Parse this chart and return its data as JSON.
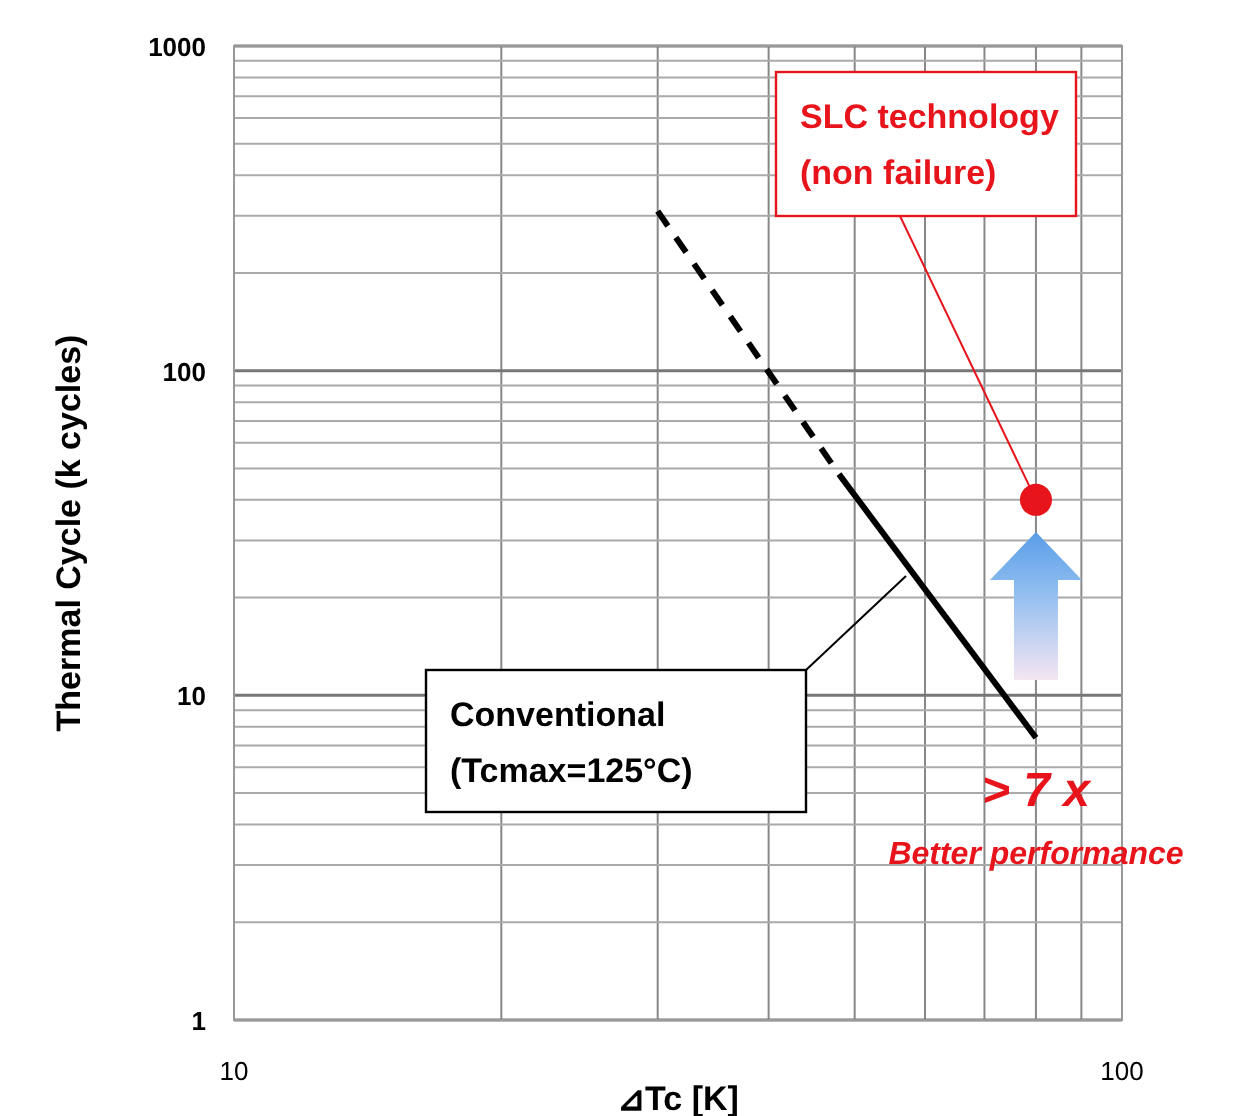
{
  "chart_data": {
    "type": "line",
    "xlabel": "⊿Tc [K]",
    "ylabel": "Thermal Cycle (k cycles)",
    "log": "xy",
    "grid": true,
    "xlim": [
      10,
      100
    ],
    "ylim": [
      1,
      1000
    ],
    "xticks": [
      10,
      {
        "value": 20,
        "label": null
      },
      {
        "value": 30,
        "label": null
      },
      {
        "value": 40,
        "label": null
      },
      {
        "value": 50,
        "label": null
      },
      {
        "value": 60,
        "label": null
      },
      {
        "value": 70,
        "label": null
      },
      {
        "value": 80,
        "label": null
      },
      {
        "value": 90,
        "label": null
      },
      100
    ],
    "yticks": [
      1,
      {
        "value": 2,
        "label": null
      },
      {
        "value": 3,
        "label": null
      },
      {
        "value": 4,
        "label": null
      },
      {
        "value": 5,
        "label": null
      },
      {
        "value": 6,
        "label": null
      },
      {
        "value": 7,
        "label": null
      },
      {
        "value": 8,
        "label": null
      },
      {
        "value": 9,
        "label": null
      },
      10,
      {
        "value": 20,
        "label": null
      },
      {
        "value": 30,
        "label": null
      },
      {
        "value": 40,
        "label": null
      },
      {
        "value": 50,
        "label": null
      },
      {
        "value": 60,
        "label": null
      },
      {
        "value": 70,
        "label": null
      },
      {
        "value": 80,
        "label": null
      },
      {
        "value": 90,
        "label": null
      },
      100,
      {
        "value": 200,
        "label": null
      },
      {
        "value": 300,
        "label": null
      },
      {
        "value": 400,
        "label": null
      },
      {
        "value": 500,
        "label": null
      },
      {
        "value": 600,
        "label": null
      },
      {
        "value": 700,
        "label": null
      },
      {
        "value": 800,
        "label": null
      },
      {
        "value": 900,
        "label": null
      },
      1000
    ],
    "series": [
      {
        "color": "#000000",
        "line_style": "dashed",
        "x": [
          30,
          48
        ],
        "values": [
          310,
          48
        ]
      },
      {
        "color": "#000000",
        "line_style": "solid",
        "x": [
          48,
          80
        ],
        "values": [
          48,
          7.4
        ]
      },
      {
        "type": "scatter",
        "color": "#e8141b",
        "marker": "circle",
        "x": [
          80
        ],
        "values": [
          40
        ]
      }
    ],
    "annotations": [
      {
        "text": "SLC technology\n(non failure)",
        "x": 80,
        "y": 40
      },
      "Conventional\n(Tcmax=125°C)",
      "> 7 x",
      "Better performance"
    ]
  }
}
